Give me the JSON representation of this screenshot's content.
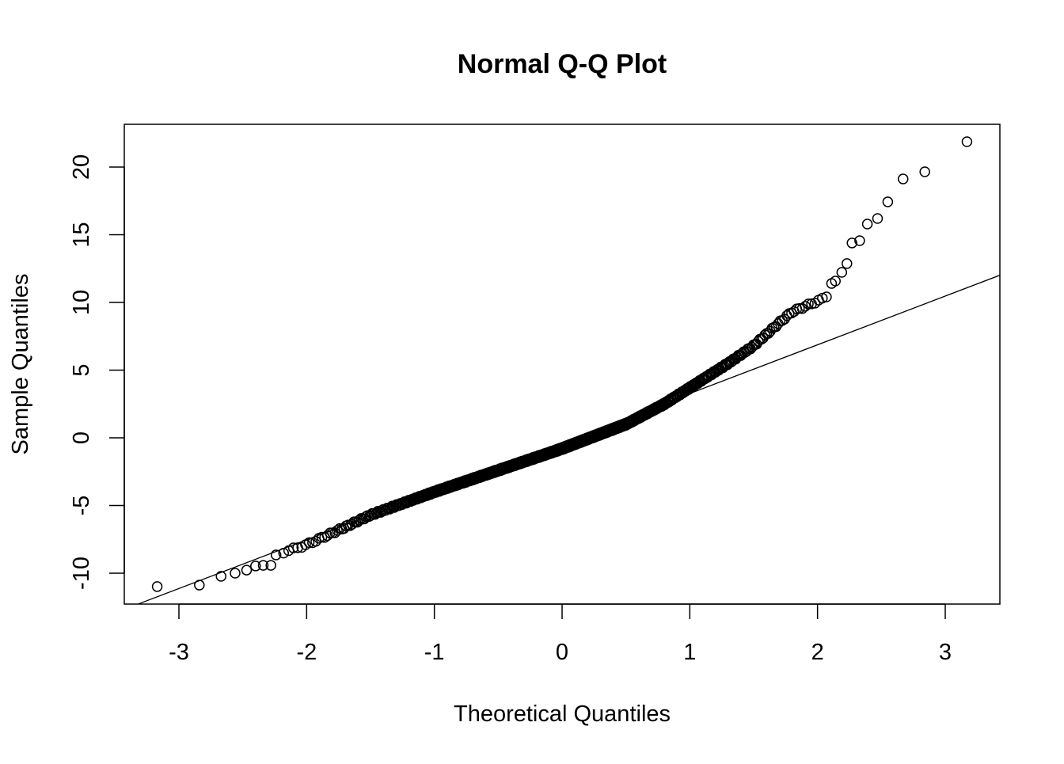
{
  "chart_data": {
    "type": "scatter",
    "title": "Normal Q-Q Plot",
    "xlabel": "Theoretical Quantiles",
    "ylabel": "Sample Quantiles",
    "xlim": [
      -3.43,
      3.43
    ],
    "ylim": [
      -12.3,
      22.7
    ],
    "xticks": [
      -3,
      -2,
      -1,
      0,
      1,
      2,
      3
    ],
    "xtick_labels": [
      "-3",
      "-2",
      "-1",
      "0",
      "1",
      "2",
      "3"
    ],
    "yticks": [
      -10,
      -5,
      0,
      5,
      10,
      15,
      20
    ],
    "ytick_labels": [
      "-10",
      "-5",
      "0",
      "5",
      "10",
      "15",
      "20"
    ],
    "grid": false,
    "n_points": 650,
    "qq_line": {
      "intercept": -0.33,
      "slope": 3.6
    },
    "central_curve_knots": [
      [
        -2.2,
        -8.5
      ],
      [
        -2.0,
        -7.9
      ],
      [
        -1.7,
        -6.6
      ],
      [
        -1.5,
        -5.7
      ],
      [
        -1.0,
        -4.0
      ],
      [
        -0.5,
        -2.4
      ],
      [
        0.0,
        -0.8
      ],
      [
        0.5,
        1.0
      ],
      [
        0.8,
        2.5
      ],
      [
        1.0,
        3.7
      ],
      [
        1.3,
        5.5
      ],
      [
        1.5,
        6.8
      ],
      [
        1.7,
        8.5
      ],
      [
        1.8,
        9.3
      ],
      [
        2.05,
        10.3
      ]
    ],
    "lower_tail_points": [
      [
        -3.17,
        -10.99
      ],
      [
        -2.84,
        -10.88
      ],
      [
        -2.67,
        -10.23
      ],
      [
        -2.56,
        -10.0
      ],
      [
        -2.47,
        -9.77
      ],
      [
        -2.4,
        -9.47
      ],
      [
        -2.34,
        -9.42
      ],
      [
        -2.28,
        -9.42
      ],
      [
        -2.24,
        -8.65
      ]
    ],
    "upper_tail_points": [
      [
        2.07,
        10.41
      ],
      [
        2.11,
        11.4
      ],
      [
        2.14,
        11.58
      ],
      [
        2.19,
        12.22
      ],
      [
        2.23,
        12.87
      ],
      [
        2.27,
        14.39
      ],
      [
        2.33,
        14.56
      ],
      [
        2.39,
        15.79
      ],
      [
        2.47,
        16.2
      ],
      [
        2.55,
        17.43
      ],
      [
        2.67,
        19.12
      ],
      [
        2.84,
        19.65
      ],
      [
        3.17,
        21.87
      ]
    ]
  }
}
